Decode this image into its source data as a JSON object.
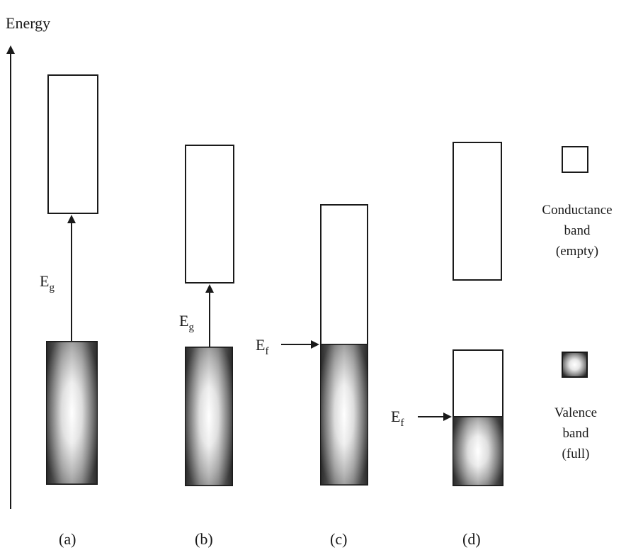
{
  "axis": {
    "label": "Energy"
  },
  "symbols": {
    "Eg_main": "E",
    "Eg_sub": "g",
    "Ef_main": "E",
    "Ef_sub": "f"
  },
  "panels": [
    {
      "label": "(a)"
    },
    {
      "label": "(b)"
    },
    {
      "label": "(c)"
    },
    {
      "label": "(d)"
    }
  ],
  "legend": {
    "conductance_lines": [
      "Conductance",
      "band",
      "(empty)"
    ],
    "valence_lines": [
      "Valence",
      "band",
      "(full)"
    ]
  },
  "colors": {
    "ink": "#1a1a1a",
    "band_dark": "#2b2b2b",
    "band_light": "#f4f4f4"
  }
}
